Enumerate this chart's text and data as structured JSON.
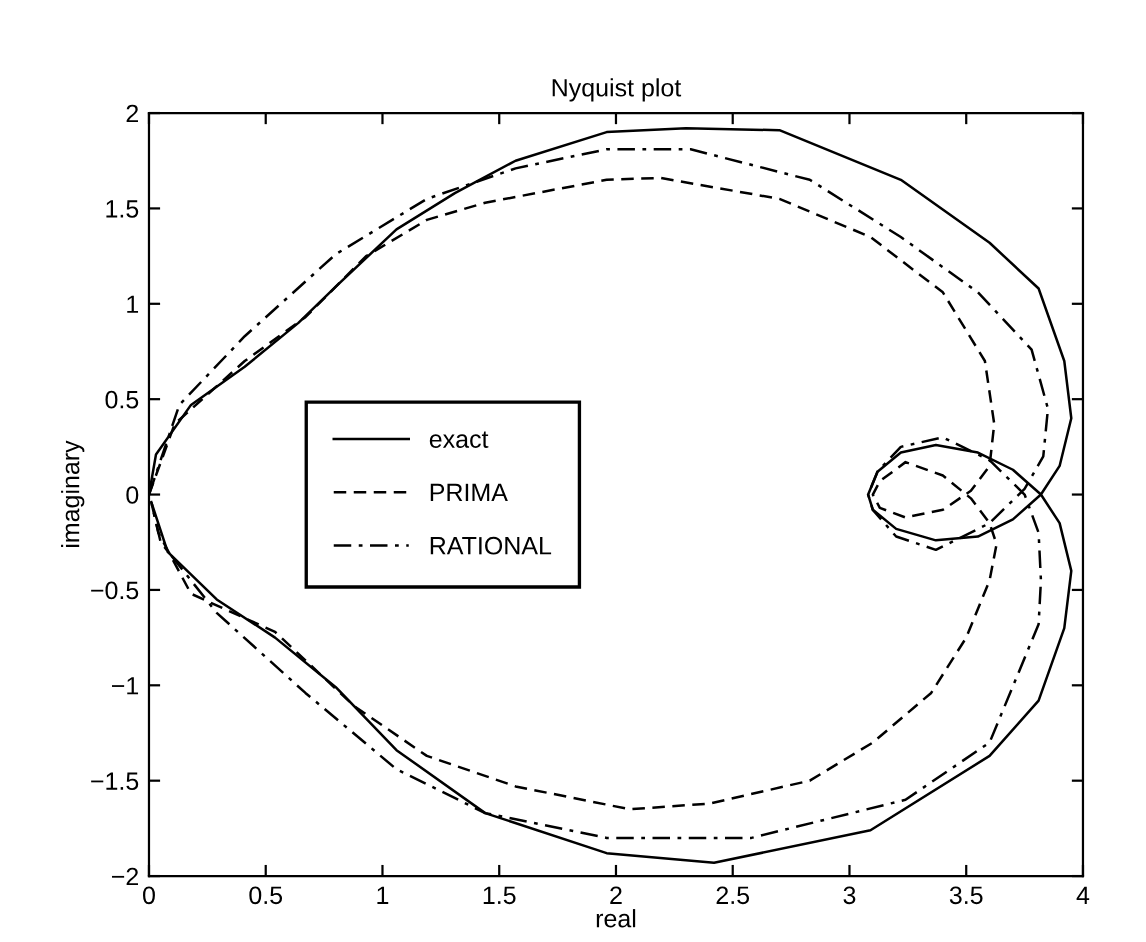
{
  "chart_data": {
    "type": "line",
    "title": "Nyquist plot",
    "xlabel": "real",
    "ylabel": "imaginary",
    "xlim": [
      0,
      4
    ],
    "ylim": [
      -2,
      2
    ],
    "xticks": [
      0,
      0.5,
      1,
      1.5,
      2,
      2.5,
      3,
      3.5,
      4
    ],
    "yticks": [
      {
        "value": -2,
        "label": "−2"
      },
      {
        "value": -1.5,
        "label": "−1.5"
      },
      {
        "value": -1,
        "label": "−1"
      },
      {
        "value": -0.5,
        "label": "−0.5"
      },
      0,
      0.5,
      1,
      1.5,
      2
    ],
    "grid": false,
    "legend": "left",
    "marker": "none",
    "series": [
      {
        "name": "exact",
        "color": "#000000",
        "line_style": "solid",
        "x": [
          0,
          0.03,
          0.18,
          0.41,
          0.64,
          0.8,
          1.06,
          1.31,
          1.57,
          1.96,
          2.3,
          2.7,
          3.22,
          3.6,
          3.81,
          3.92,
          3.95,
          3.9,
          3.82,
          3.7,
          3.55,
          3.37,
          3.2,
          3.1,
          3.08,
          3.12,
          3.22,
          3.37,
          3.55,
          3.7,
          3.82,
          3.9,
          3.95,
          3.92,
          3.81,
          3.6,
          3.09,
          2.42,
          1.96,
          1.44,
          1.06,
          0.8,
          0.54,
          0.29,
          0.08,
          0.01
        ],
        "values": [
          0,
          0.21,
          0.47,
          0.67,
          0.9,
          1.09,
          1.39,
          1.58,
          1.75,
          1.9,
          1.92,
          1.91,
          1.65,
          1.32,
          1.08,
          0.7,
          0.4,
          0.15,
          0,
          -0.13,
          -0.22,
          -0.24,
          -0.18,
          -0.08,
          0,
          0.12,
          0.22,
          0.26,
          0.22,
          0.13,
          0,
          -0.15,
          -0.4,
          -0.7,
          -1.08,
          -1.37,
          -1.76,
          -1.93,
          -1.88,
          -1.67,
          -1.34,
          -1.01,
          -0.75,
          -0.55,
          -0.3,
          -0.04
        ]
      },
      {
        "name": "PRIMA",
        "color": "#000000",
        "line_style": "dashed",
        "x": [
          0,
          0.11,
          0.41,
          0.67,
          0.93,
          1.19,
          1.44,
          1.96,
          2.19,
          2.7,
          3.09,
          3.4,
          3.58,
          3.62,
          3.6,
          3.52,
          3.4,
          3.24,
          3.13,
          3.1,
          3.13,
          3.24,
          3.4,
          3.52,
          3.6,
          3.63,
          3.6,
          3.5,
          3.35,
          3.1,
          2.83,
          2.4,
          2.06,
          1.57,
          1.19,
          0.88,
          0.54,
          0.18,
          0.04,
          0.01
        ],
        "values": [
          0,
          0.37,
          0.7,
          0.93,
          1.25,
          1.44,
          1.53,
          1.65,
          1.66,
          1.55,
          1.35,
          1.06,
          0.7,
          0.37,
          0.15,
          0.02,
          -0.08,
          -0.12,
          -0.07,
          0,
          0.07,
          0.17,
          0.1,
          -0.02,
          -0.15,
          -0.26,
          -0.45,
          -0.75,
          -1.04,
          -1.3,
          -1.5,
          -1.62,
          -1.65,
          -1.53,
          -1.37,
          -1.11,
          -0.72,
          -0.52,
          -0.2,
          -0.04
        ]
      },
      {
        "name": "RATIONAL",
        "color": "#000000",
        "line_style": "dashdot",
        "x": [
          0,
          0.13,
          0.41,
          0.8,
          1.19,
          1.57,
          1.96,
          2.32,
          2.83,
          3.22,
          3.55,
          3.78,
          3.85,
          3.83,
          3.75,
          3.6,
          3.37,
          3.2,
          3.1,
          3.08,
          3.12,
          3.22,
          3.4,
          3.6,
          3.75,
          3.81,
          3.82,
          3.81,
          3.6,
          3.24,
          2.58,
          1.96,
          1.44,
          1.06,
          0.67,
          0.29,
          0.05,
          0.01
        ],
        "values": [
          0,
          0.47,
          0.83,
          1.26,
          1.55,
          1.71,
          1.81,
          1.81,
          1.65,
          1.35,
          1.06,
          0.76,
          0.45,
          0.2,
          0.03,
          -0.15,
          -0.29,
          -0.22,
          -0.08,
          0,
          0.12,
          0.25,
          0.3,
          0.18,
          0,
          -0.2,
          -0.45,
          -0.68,
          -1.3,
          -1.6,
          -1.8,
          -1.8,
          -1.67,
          -1.44,
          -1.04,
          -0.62,
          -0.25,
          -0.04
        ]
      }
    ]
  }
}
